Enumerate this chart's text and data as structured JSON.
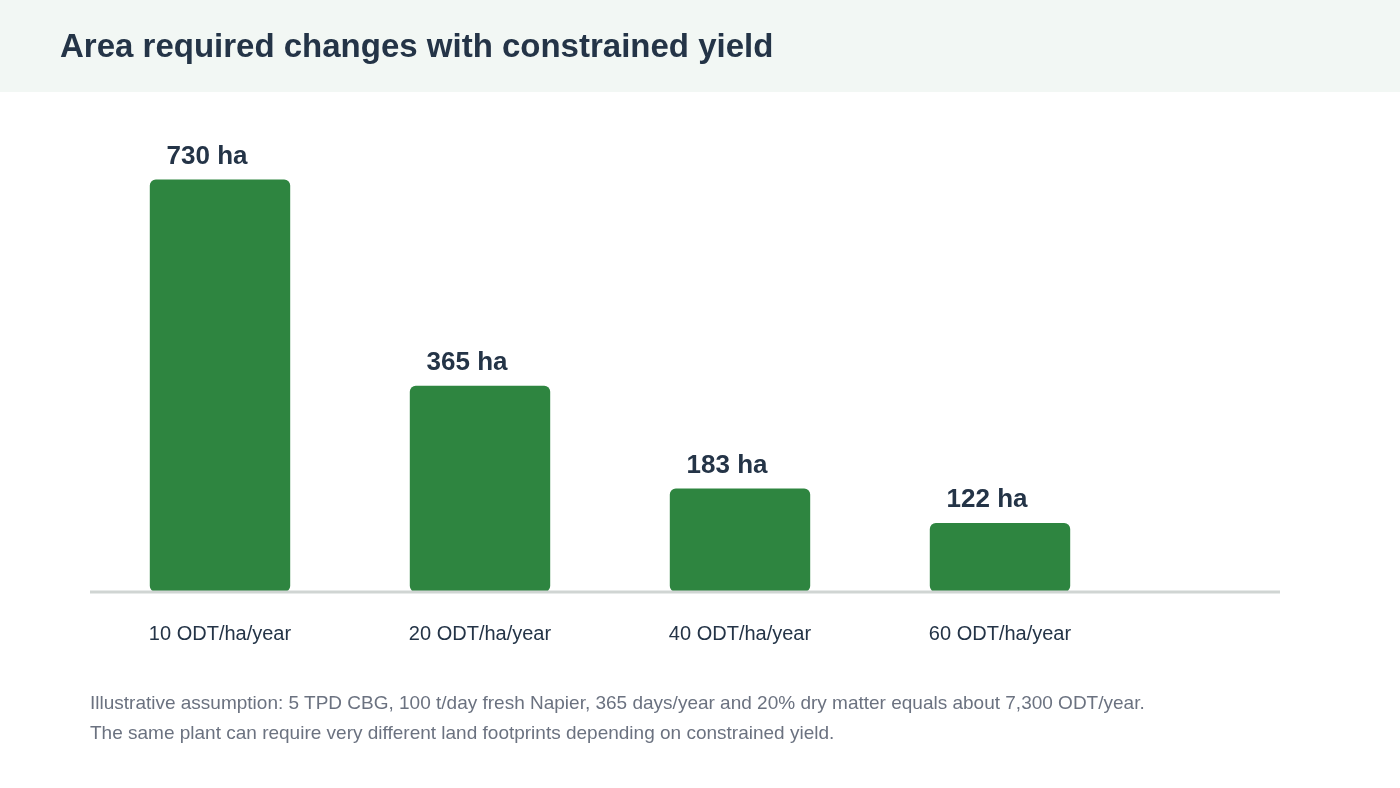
{
  "chart_data": {
    "type": "bar",
    "title": "Area required changes with constrained yield",
    "categories": [
      "10 ODT/ha/year",
      "20 ODT/ha/year",
      "40 ODT/ha/year",
      "60 ODT/ha/year"
    ],
    "values": [
      730,
      365,
      183,
      122
    ],
    "value_labels": [
      "730 ha",
      "365 ha",
      "183 ha",
      "122 ha"
    ],
    "color": "#2e8540",
    "grid": false,
    "legend": false,
    "tick_labels": "x",
    "annotations": [
      "Illustrative assumption: 5 TPD CBG, 100 t/day fresh Napier, 365 days/year and 20% dry matter equals about 7,300 ODT/year.",
      "The same plant can require very different land footprints depending on constrained yield."
    ]
  }
}
